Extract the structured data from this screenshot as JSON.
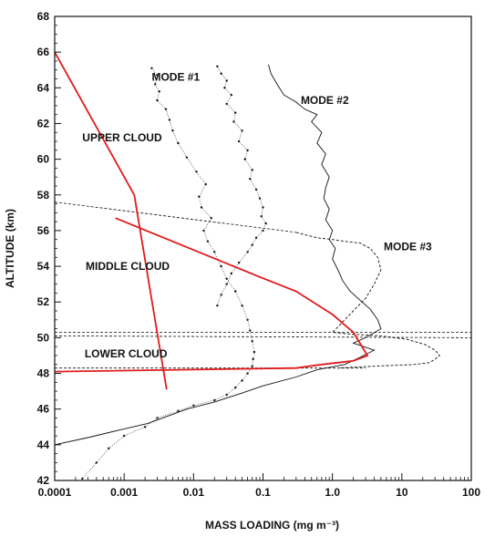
{
  "chart_data": {
    "type": "line",
    "xlabel": "MASS LOADING (mg m⁻³)",
    "ylabel": "ALTITUDE (km)",
    "x_scale": "log",
    "xlim": [
      0.0001,
      100
    ],
    "ylim": [
      42,
      68
    ],
    "x_ticks": [
      {
        "value": 0.0001,
        "label": "0.0001"
      },
      {
        "value": 0.001,
        "label": "0.001"
      },
      {
        "value": 0.01,
        "label": "0.01"
      },
      {
        "value": 0.1,
        "label": "0.1"
      },
      {
        "value": 1,
        "label": "1.0"
      },
      {
        "value": 10,
        "label": "10"
      },
      {
        "value": 100,
        "label": "100"
      }
    ],
    "y_ticks": [
      42,
      44,
      46,
      48,
      50,
      52,
      54,
      56,
      58,
      60,
      62,
      64,
      66,
      68
    ],
    "grid": false,
    "annotations": [
      {
        "text": "MODE #1",
        "x": 0.0025,
        "y": 64.4
      },
      {
        "text": "MODE #2",
        "x": 0.35,
        "y": 63.1
      },
      {
        "text": "MODE #3",
        "x": 5.5,
        "y": 54.9
      },
      {
        "text": "UPPER CLOUD",
        "x": 0.00025,
        "y": 61.0
      },
      {
        "text": "MIDDLE CLOUD",
        "x": 0.00028,
        "y": 53.8
      },
      {
        "text": "LOWER CLOUD",
        "x": 0.00027,
        "y": 48.9
      }
    ],
    "boundaries": [
      {
        "name": "upper/middle",
        "x": [
          0.0001,
          0.3
        ],
        "y": [
          57.6,
          55.9
        ]
      },
      {
        "name": "middle/lower top",
        "x": [
          0.0001,
          100
        ],
        "y": [
          50.3,
          50.3
        ]
      },
      {
        "name": "middle/lower",
        "x": [
          0.0001,
          100
        ],
        "y": [
          50.1,
          50.0
        ]
      },
      {
        "name": "lower base",
        "x": [
          0.0001,
          3
        ],
        "y": [
          48.3,
          48.3
        ]
      }
    ],
    "series": [
      {
        "name": "MODE #1",
        "style": "dotted-markers",
        "x": [
          0.0025,
          0.003,
          0.0028,
          0.0032,
          0.003,
          0.004,
          0.0045,
          0.005,
          0.006,
          0.008,
          0.011,
          0.015,
          0.012,
          0.013,
          0.018,
          0.014,
          0.016,
          0.02,
          0.025,
          0.03,
          0.04,
          0.05,
          0.06,
          0.065,
          0.07,
          0.075,
          0.072,
          0.07,
          0.06,
          0.05,
          0.04,
          0.03,
          0.02,
          0.01,
          0.006,
          0.003,
          0.002,
          0.001,
          0.0006,
          0.0004,
          0.00025
        ],
        "y": [
          65.1,
          64.7,
          64.2,
          63.8,
          63.3,
          62.8,
          62.2,
          61.6,
          60.9,
          60.1,
          59.3,
          58.6,
          57.9,
          57.3,
          56.7,
          56.0,
          55.4,
          54.8,
          54.0,
          53.3,
          52.6,
          51.8,
          51.0,
          50.4,
          49.8,
          49.2,
          48.8,
          48.4,
          48.0,
          47.6,
          47.2,
          46.8,
          46.5,
          46.2,
          45.9,
          45.5,
          45.0,
          44.5,
          43.8,
          43.0,
          42.1
        ]
      },
      {
        "name": "MODE #1 (upper branch)",
        "style": "dotted-markers",
        "x": [
          0.022,
          0.025,
          0.03,
          0.028,
          0.035,
          0.03,
          0.04,
          0.038,
          0.05,
          0.045,
          0.06,
          0.055,
          0.07,
          0.065,
          0.08,
          0.09,
          0.1,
          0.095,
          0.11,
          0.1,
          0.08,
          0.07,
          0.06,
          0.045,
          0.035,
          0.03,
          0.025,
          0.022
        ],
        "y": [
          65.2,
          64.8,
          64.4,
          64.0,
          63.6,
          63.1,
          62.6,
          62.1,
          61.6,
          61.0,
          60.5,
          60.0,
          59.4,
          58.9,
          58.3,
          57.8,
          57.3,
          56.8,
          56.4,
          56.0,
          55.6,
          55.2,
          54.8,
          54.2,
          53.6,
          53.0,
          52.4,
          51.8
        ]
      },
      {
        "name": "MODE #2",
        "style": "solid",
        "x": [
          0.12,
          0.13,
          0.16,
          0.2,
          0.3,
          0.4,
          0.6,
          0.5,
          0.7,
          0.6,
          0.8,
          0.7,
          0.9,
          0.8,
          0.75,
          0.9,
          0.8,
          1.0,
          0.9,
          1.1,
          1.0,
          1.2,
          1.4,
          1.8,
          2.5,
          3.5,
          4.5,
          5.0,
          3.0,
          2.0,
          4.0,
          2.5,
          1.5,
          0.6,
          0.3,
          0.1,
          0.05,
          0.02,
          0.008,
          0.0022,
          0.0008,
          0.0003,
          0.0001
        ],
        "y": [
          65.3,
          64.8,
          64.2,
          63.6,
          63.2,
          62.8,
          62.5,
          62.1,
          61.5,
          60.9,
          60.3,
          59.7,
          59.0,
          58.4,
          57.8,
          57.2,
          56.6,
          56.0,
          55.5,
          55.0,
          54.4,
          53.8,
          53.2,
          52.6,
          52.1,
          51.6,
          51.0,
          50.5,
          50.0,
          49.7,
          49.3,
          48.9,
          48.5,
          48.2,
          47.8,
          47.3,
          46.9,
          46.4,
          46.0,
          45.2,
          44.8,
          44.4,
          44.0
        ]
      },
      {
        "name": "MODE #3",
        "style": "dashed",
        "x": [
          0.3,
          0.6,
          1.0,
          1.5,
          2.5,
          3.5,
          4.5,
          5.0,
          4.0,
          3.0,
          2.0,
          1.5,
          1.2,
          1.0,
          1.8,
          5.0,
          12.0,
          22.0,
          30.0,
          35.0,
          30.0,
          25.0,
          15.0,
          8.0,
          4.0,
          2.0,
          1.2
        ],
        "y": [
          55.9,
          55.6,
          55.5,
          55.4,
          55.3,
          55.0,
          54.5,
          53.8,
          53.0,
          52.2,
          51.5,
          51.0,
          50.6,
          50.3,
          50.2,
          50.1,
          49.9,
          49.6,
          49.3,
          49.0,
          48.8,
          48.6,
          48.5,
          48.45,
          48.4,
          48.35,
          48.3
        ]
      },
      {
        "name": "Model profile",
        "style": "solid-red",
        "x": [
          0.0001,
          0.0014,
          0.0041
        ],
        "y": [
          66.0,
          58.0,
          47.1
        ]
      },
      {
        "name": "Model profile (middle/lower)",
        "style": "solid-red",
        "x": [
          0.00075,
          0.09,
          0.3,
          1.0,
          2.0,
          3.2,
          2.0,
          0.7,
          0.3,
          0.0001
        ],
        "y": [
          56.7,
          53.4,
          52.6,
          51.3,
          50.3,
          49.0,
          48.7,
          48.5,
          48.3,
          48.1
        ]
      }
    ]
  }
}
